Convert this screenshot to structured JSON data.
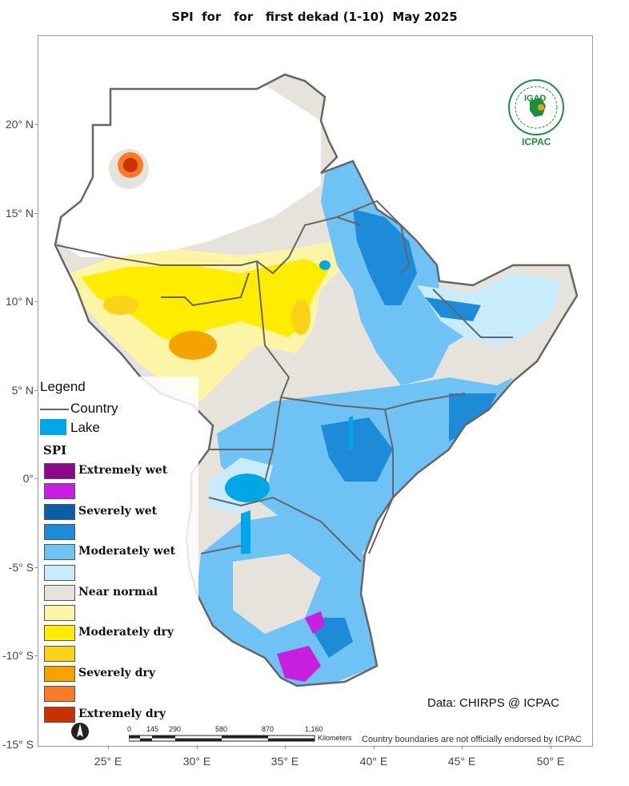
{
  "title": "SPI  for   for   first dekad (1-10)  May 2025",
  "latitude_labels": [
    "20° N",
    "15° N",
    "10° N",
    "5° N",
    "0°",
    "-5° S",
    "-10° S",
    "-15° S"
  ],
  "longitude_labels": [
    "25° E",
    "30° E",
    "35° E",
    "40° E",
    "45° E",
    "50° E"
  ],
  "legend": {
    "title": "Legend",
    "country_label": "Country",
    "lake_label": "Lake",
    "spi_title": "SPI",
    "classes": [
      {
        "label": "Extremely wet",
        "color": "#8b0a8b"
      },
      {
        "label": "",
        "color": "#c81fe0"
      },
      {
        "label": "Severely wet",
        "color": "#0a5fa8"
      },
      {
        "label": "",
        "color": "#1e8bd8"
      },
      {
        "label": "Moderately wet",
        "color": "#6ec3f4"
      },
      {
        "label": "",
        "color": "#c8ecfb"
      },
      {
        "label": "Near normal",
        "color": "#e6e3dc"
      },
      {
        "label": "",
        "color": "#fbf5a5"
      },
      {
        "label": "Moderately dry",
        "color": "#ffec00"
      },
      {
        "label": "",
        "color": "#fad319"
      },
      {
        "label": "Severely dry",
        "color": "#f5a300"
      },
      {
        "label": "",
        "color": "#fb7a28"
      },
      {
        "label": "Extremely dry",
        "color": "#c83200"
      }
    ]
  },
  "logo": {
    "name": "IGAD",
    "caption": "ICPAC"
  },
  "data_credit": "Data: CHIRPS @ ICPAC",
  "scale_bar": {
    "ticks": [
      "0",
      "145",
      "290",
      "580",
      "870",
      "1,160"
    ],
    "unit": "Kilometers"
  },
  "disclaimer": "Country boundaries are not officially endorsed by ICPAC",
  "colors": {
    "lake": "#00a6e6",
    "border": "#666666",
    "sea": "#ffffff"
  }
}
